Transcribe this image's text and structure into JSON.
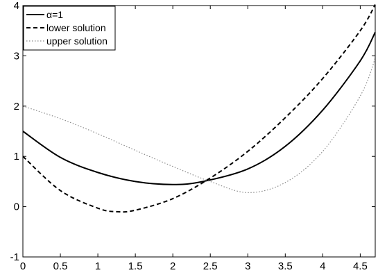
{
  "chart_data": {
    "type": "line",
    "title": "",
    "xlabel": "",
    "ylabel": "",
    "xlim": [
      0,
      4.7
    ],
    "ylim": [
      -1,
      4
    ],
    "x_ticks": [
      "0",
      "0.5",
      "1",
      "1.5",
      "2",
      "2.5",
      "3",
      "3.5",
      "4",
      "4.5"
    ],
    "y_ticks": [
      "-1",
      "0",
      "1",
      "2",
      "3",
      "4"
    ],
    "grid": false,
    "legend_position": "top-left",
    "series": [
      {
        "name": "α=1",
        "style": "solid",
        "color": "#000000",
        "x": [
          0,
          0.5,
          1,
          1.5,
          2,
          2.4,
          3,
          3.5,
          4,
          4.5,
          4.7
        ],
        "y": [
          1.5,
          0.98,
          0.68,
          0.5,
          0.44,
          0.5,
          0.75,
          1.2,
          1.92,
          2.9,
          3.47
        ]
      },
      {
        "name": "lower solution",
        "style": "dashed",
        "color": "#000000",
        "x": [
          0,
          0.5,
          1,
          1.25,
          1.5,
          2,
          2.5,
          3,
          3.5,
          4,
          4.5,
          4.7
        ],
        "y": [
          1.0,
          0.32,
          -0.03,
          -0.1,
          -0.07,
          0.16,
          0.57,
          1.1,
          1.77,
          2.55,
          3.5,
          4.02
        ]
      },
      {
        "name": "upper solution",
        "style": "dotted",
        "color": "#000000",
        "x": [
          0,
          0.5,
          1,
          1.5,
          2,
          2.5,
          3,
          3.5,
          4,
          4.5,
          4.7
        ],
        "y": [
          2.0,
          1.75,
          1.45,
          1.12,
          0.8,
          0.5,
          0.28,
          0.48,
          1.1,
          2.2,
          2.95
        ]
      }
    ]
  }
}
